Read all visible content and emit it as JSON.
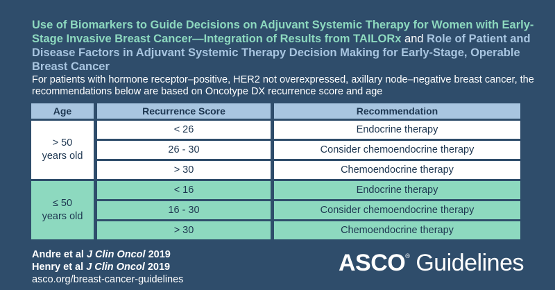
{
  "title": {
    "line1_green": "Use of Biomarkers to Guide Decisions on Adjuvant Systemic Therapy for Women with Early-Stage Invasive Breast Cancer—Integration of Results from TAILORx",
    "connector": "and",
    "line2_blue": "Role of Patient and Disease Factors in Adjuvant Systemic Therapy Decision Making for Early-Stage, Operable Breast Cancer"
  },
  "subtitle": "For patients with hormone receptor–positive, HER2 not overexpressed, axillary node–negative breast cancer, the recommendations below are based on Oncotype DX recurrence score and age",
  "table": {
    "headers": [
      "Age",
      "Recurrence Score",
      "Recommendation"
    ],
    "groups": [
      {
        "age_line1": "> 50",
        "age_line2": "years old",
        "rows": [
          {
            "score": "< 26",
            "recommendation": "Endocrine therapy"
          },
          {
            "score": "26 - 30",
            "recommendation": "Consider chemoendocrine therapy"
          },
          {
            "score": "> 30",
            "recommendation": "Chemoendocrine therapy"
          }
        ]
      },
      {
        "age_line1": "≤ 50",
        "age_line2": "years old",
        "rows": [
          {
            "score": "< 16",
            "recommendation": "Endocrine therapy"
          },
          {
            "score": "16 - 30",
            "recommendation": "Consider chemoendocrine therapy"
          },
          {
            "score": "> 30",
            "recommendation": "Chemoendocrine therapy"
          }
        ]
      }
    ]
  },
  "references": [
    {
      "authors": "Andre et al",
      "journal": "J Clin Oncol",
      "year": "2019"
    },
    {
      "authors": "Henry et al",
      "journal": "J Clin Oncol",
      "year": "2019"
    }
  ],
  "url": "asco.org/breast-cancer-guidelines",
  "brand": {
    "asco": "ASCO",
    "mark": "®",
    "guidelines": " Guidelines"
  },
  "colors": {
    "background": "#2f4d6b",
    "green": "#8dd9bf",
    "blue": "#a8c5e0",
    "dark_text": "#1d3650"
  }
}
